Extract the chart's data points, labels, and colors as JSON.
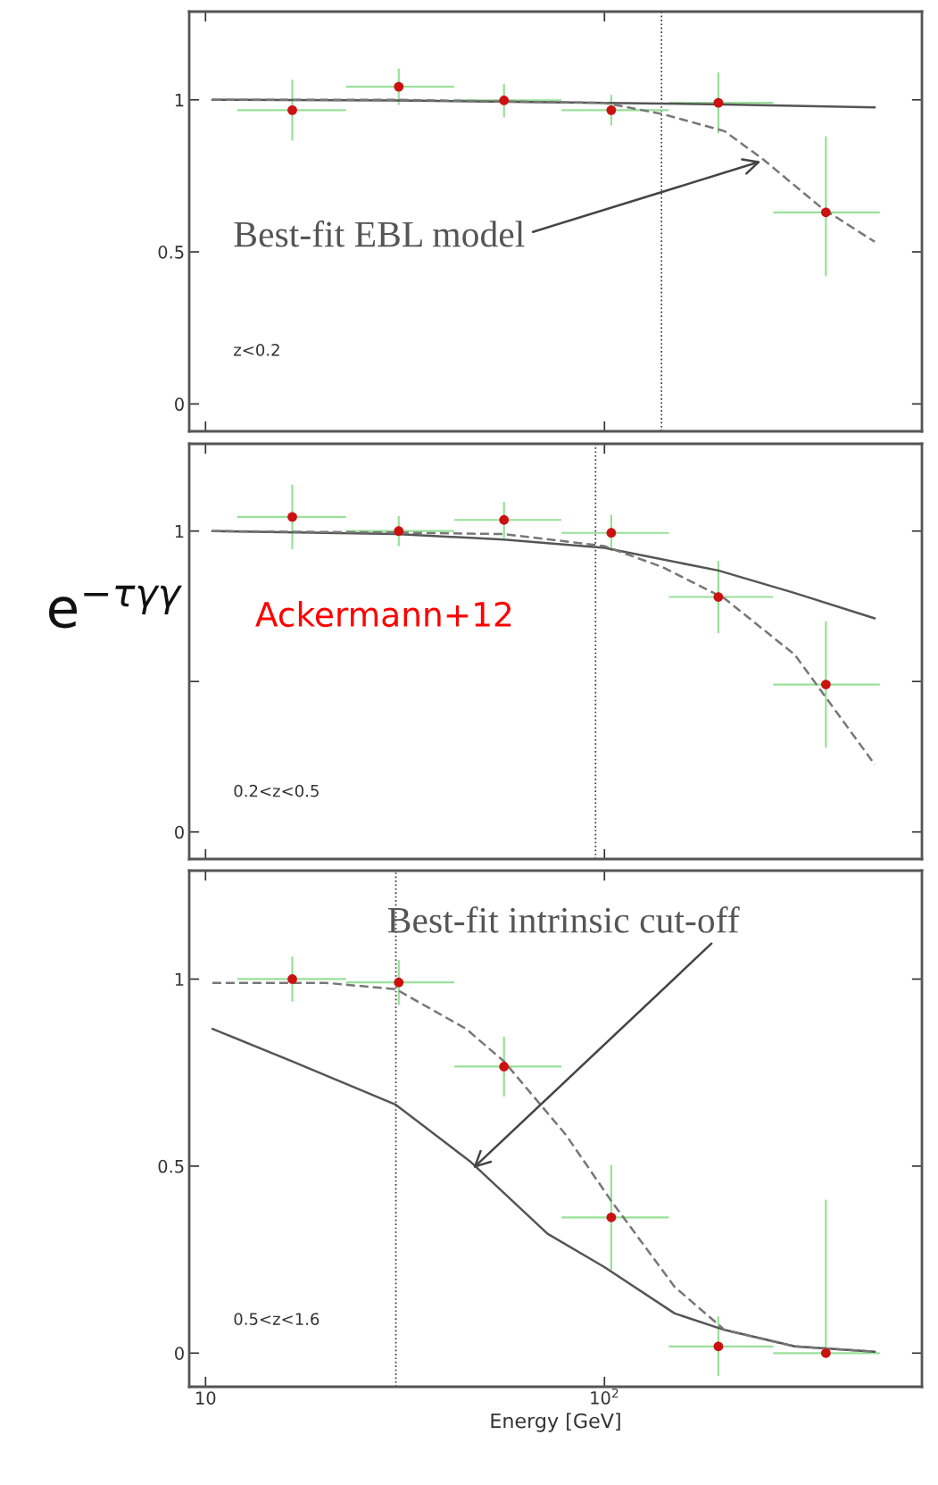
{
  "chart_data": [
    {
      "type": "scatter",
      "xlim": [
        9.1,
        625
      ],
      "ylim": [
        -0.09,
        1.29
      ],
      "log": "x",
      "yticks": [
        0,
        0.5,
        1
      ],
      "tick_labels": "y",
      "grid": false,
      "legend": false,
      "x": [
        16.5,
        30.5,
        56,
        104,
        193,
        359
      ],
      "series": [
        {
          "color": "#cc1111",
          "values": [
            0.966,
            1.043,
            0.998,
            0.966,
            0.99,
            0.63
          ],
          "errors": [
            0.1,
            0.06,
            0.055,
            0.05,
            0.1,
            [
              0.42,
              0.88
            ]
          ],
          "xerrors": [
            [
              12,
              22.5
            ],
            [
              22.5,
              42
            ],
            [
              42,
              78
            ],
            [
              78,
              145
            ],
            [
              145,
              265
            ],
            [
              265,
              490
            ]
          ],
          "marker": "circle"
        },
        {
          "type": "line",
          "color": "#555555",
          "line_style": "solid",
          "x": [
            10.4,
            30,
            100,
            200,
            476
          ],
          "values": [
            1.0,
            0.998,
            0.99,
            0.985,
            0.975
          ]
        },
        {
          "type": "line",
          "color": "#777777",
          "line_style": "dashed",
          "x": [
            10.4,
            30,
            100,
            140,
            200,
            250,
            350,
            476
          ],
          "values": [
            1.0,
            1.0,
            0.99,
            0.953,
            0.897,
            0.804,
            0.645,
            0.533
          ]
        }
      ],
      "ref_lines": [
        {
          "axis": "x",
          "value": 139,
          "line_style": "dotted",
          "color": "#333333"
        }
      ],
      "annotations": [
        {
          "text": "Best-fit EBL model",
          "x": 250,
          "y": 0.8
        },
        "z<0.2"
      ]
    },
    {
      "type": "scatter",
      "ylabel": "e$^{−τγγ}$",
      "xlim": [
        9.1,
        625
      ],
      "ylim": [
        -0.09,
        1.29
      ],
      "log": "x",
      "yticks": [
        0,
        {
          "value": 0.5,
          "label": null
        },
        1
      ],
      "tick_labels": "y",
      "grid": false,
      "legend": false,
      "x": [
        16.5,
        30.5,
        56,
        104,
        193,
        359
      ],
      "series": [
        {
          "color": "#cc1111",
          "values": [
            1.047,
            1.0,
            1.037,
            0.994,
            0.781,
            0.49
          ],
          "errors": [
            0.107,
            0.05,
            0.06,
            0.06,
            0.12,
            0.21
          ],
          "xerrors": [
            [
              12,
              22.5
            ],
            [
              22.5,
              42
            ],
            [
              42,
              78
            ],
            [
              78,
              145
            ],
            [
              145,
              265
            ],
            [
              265,
              490
            ]
          ],
          "marker": "circle"
        },
        {
          "type": "line",
          "color": "#555555",
          "line_style": "solid",
          "x": [
            10.4,
            30,
            56,
            100,
            193,
            300,
            476
          ],
          "values": [
            1.0,
            0.99,
            0.972,
            0.944,
            0.869,
            0.794,
            0.71
          ]
        },
        {
          "type": "line",
          "color": "#777777",
          "line_style": "dashed",
          "x": [
            10.4,
            30,
            56,
            100,
            140,
            200,
            300,
            476
          ],
          "values": [
            1.0,
            0.995,
            0.99,
            0.95,
            0.88,
            0.776,
            0.589,
            0.224
          ]
        }
      ],
      "ref_lines": [
        {
          "axis": "x",
          "value": 95,
          "line_style": "dotted",
          "color": "#333333"
        }
      ],
      "annotations": [
        "Ackermann+12",
        "0.2<z<0.5"
      ]
    },
    {
      "type": "scatter",
      "xlabel": "Energy [GeV]",
      "xlim": [
        9.1,
        625
      ],
      "ylim": [
        -0.09,
        1.29
      ],
      "log": "x",
      "xticks": [
        10,
        {
          "value": 100,
          "label": "10$^{2}$"
        }
      ],
      "yticks": [
        0,
        0.5,
        1
      ],
      "grid": false,
      "legend": false,
      "x": [
        16.5,
        30.5,
        56,
        104,
        193,
        359
      ],
      "series": [
        {
          "color": "#cc1111",
          "values": [
            1.0,
            0.991,
            0.766,
            0.363,
            0.018,
            0.0
          ],
          "errors": [
            0.06,
            0.06,
            0.08,
            0.14,
            0.08,
            [
              0,
              0.41
            ]
          ],
          "xerrors": [
            [
              12,
              22.5
            ],
            [
              22.5,
              42
            ],
            [
              42,
              78
            ],
            [
              78,
              145
            ],
            [
              145,
              265
            ],
            [
              265,
              490
            ]
          ],
          "marker": "circle"
        },
        {
          "type": "line",
          "color": "#555555",
          "line_style": "solid",
          "x": [
            10.4,
            16.5,
            30,
            46,
            72,
            100,
            150,
            200,
            300,
            476
          ],
          "values": [
            0.867,
            0.78,
            0.664,
            0.513,
            0.319,
            0.23,
            0.106,
            0.062,
            0.018,
            0.004
          ]
        },
        {
          "type": "line",
          "color": "#777777",
          "line_style": "dashed",
          "x": [
            10.4,
            20,
            30,
            45,
            56,
            80,
            104,
            150,
            200,
            300,
            476
          ],
          "values": [
            0.99,
            0.99,
            0.973,
            0.867,
            0.78,
            0.584,
            0.407,
            0.177,
            0.062,
            0.018,
            0.004
          ]
        }
      ],
      "ref_lines": [
        {
          "axis": "x",
          "value": 30,
          "line_style": "dotted",
          "color": "#333333"
        }
      ],
      "annotations": [
        "Best-fit intrinsic cut-off",
        "0.5<z<1.6"
      ]
    }
  ]
}
